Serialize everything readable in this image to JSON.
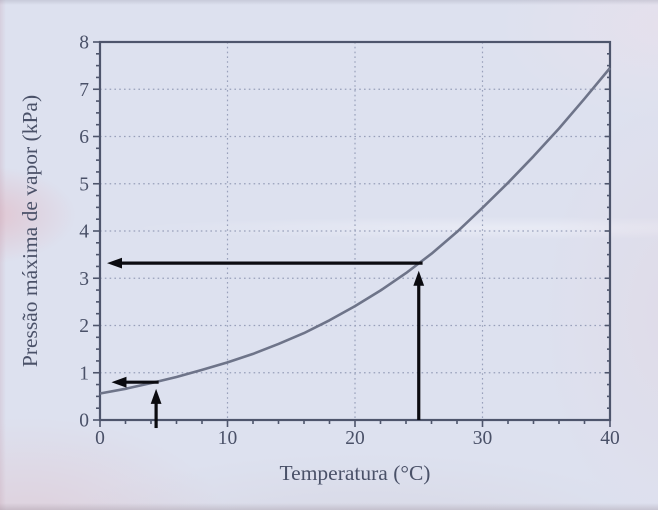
{
  "chart_data": {
    "type": "line",
    "title": "",
    "xlabel": "Temperatura (°C)",
    "ylabel": "Pressão máxima de vapor (kPa)",
    "xlim": [
      0,
      40
    ],
    "ylim": [
      0,
      8
    ],
    "x_ticks": [
      0,
      10,
      20,
      30,
      40
    ],
    "x_minor_step": 2,
    "y_ticks": [
      0,
      1,
      2,
      3,
      4,
      5,
      6,
      7,
      8
    ],
    "y_minor_step": 0.25,
    "grid": "dotted-at-major-ticks",
    "legend": "none",
    "series": [
      {
        "name": "curva-pressao-maxima-de-vapor",
        "x": [
          0,
          2,
          4,
          6,
          8,
          10,
          12,
          14,
          16,
          18,
          20,
          22,
          24,
          26,
          28,
          30,
          32,
          34,
          36,
          38,
          40
        ],
        "y": [
          0.56,
          0.66,
          0.78,
          0.91,
          1.06,
          1.22,
          1.4,
          1.61,
          1.84,
          2.11,
          2.41,
          2.74,
          3.11,
          3.52,
          3.98,
          4.49,
          5.02,
          5.58,
          6.17,
          6.8,
          7.45
        ]
      }
    ],
    "annotations": [
      {
        "name": "arrow-up-at-25C",
        "type": "arrow",
        "from": [
          25.0,
          0.0
        ],
        "to": [
          25.0,
          3.16
        ]
      },
      {
        "name": "arrow-left-to-3p3-kPa",
        "type": "arrow",
        "from": [
          25.3,
          3.32
        ],
        "to": [
          0.55,
          3.32
        ]
      },
      {
        "name": "arrow-up-at-4C",
        "type": "arrow",
        "from": [
          4.4,
          -0.17
        ],
        "to": [
          4.4,
          0.66
        ]
      },
      {
        "name": "arrow-left-to-0p8-kPa",
        "type": "arrow",
        "from": [
          4.6,
          0.8
        ],
        "to": [
          0.9,
          0.8
        ]
      }
    ],
    "colors": {
      "curve": "#6e7489",
      "axis": "#4e556c",
      "grid": "#98a0ba",
      "text": "#4a5168",
      "arrow": "#0b0b10",
      "page_background": "#dde1ef"
    }
  }
}
